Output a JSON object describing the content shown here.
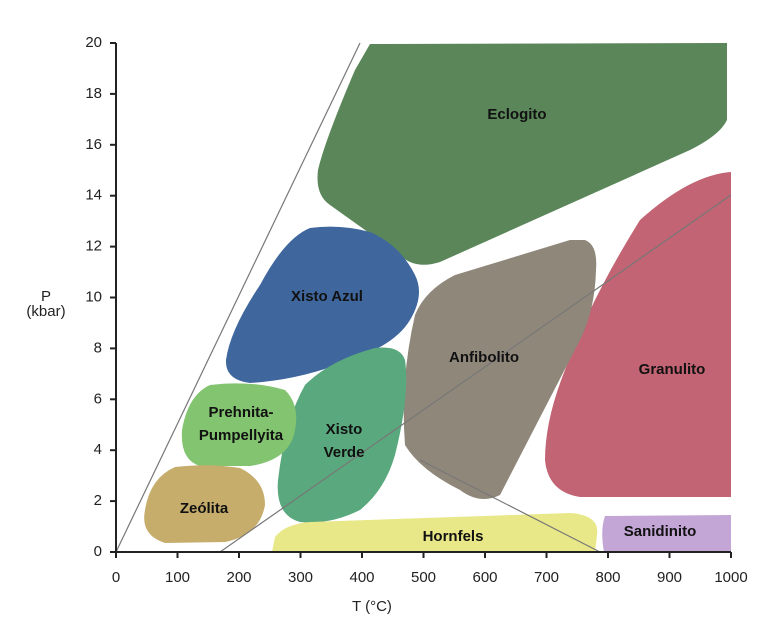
{
  "chart_data": {
    "type": "facies-diagram",
    "x_label": "T (°C)",
    "y_label": [
      "P",
      "(kbar)"
    ],
    "xlim": [
      0,
      1000
    ],
    "xticks": [
      0,
      100,
      200,
      300,
      400,
      500,
      600,
      700,
      800,
      900,
      1000
    ],
    "ylim": [
      0,
      20
    ],
    "yticks": [
      0,
      2,
      4,
      6,
      8,
      10,
      12,
      14,
      16,
      18,
      20
    ],
    "regions": [
      {
        "label": [
          "Eclogito"
        ]
      },
      {
        "label": [
          "Xisto Azul"
        ]
      },
      {
        "label": [
          "Anfibolito"
        ]
      },
      {
        "label": [
          "Granulito"
        ]
      },
      {
        "label": [
          "Prehnita-",
          "Pumpellyita"
        ]
      },
      {
        "label": [
          "Xisto",
          "Verde"
        ]
      },
      {
        "label": [
          "Zeólita"
        ]
      },
      {
        "label": [
          "Hornfels"
        ]
      },
      {
        "label": [
          "Sanidinito"
        ]
      }
    ]
  }
}
